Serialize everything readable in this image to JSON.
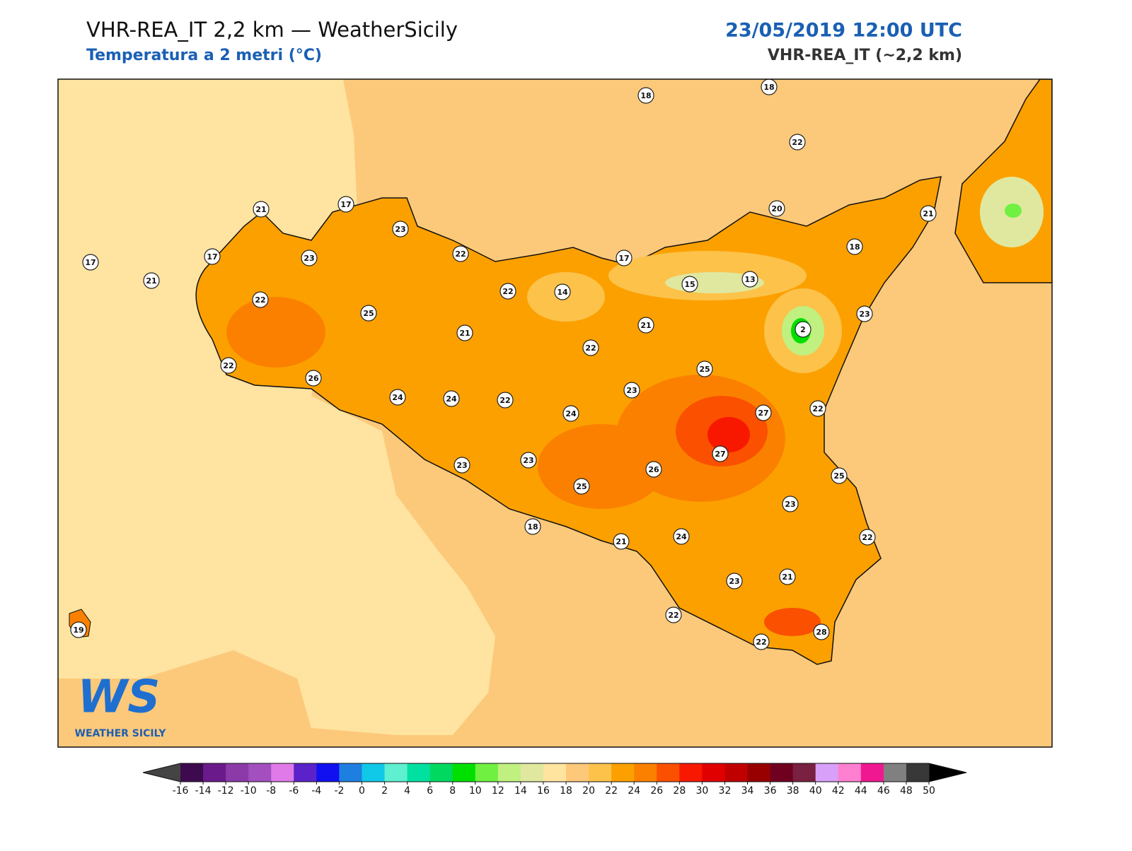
{
  "header": {
    "title": "VHR-REA_IT 2,2 km — WeatherSicily",
    "subtitle": "Temperatura a 2 metri (°C)",
    "date": "23/05/2019 12:00 UTC",
    "model": "VHR-REA_IT (~2,2 km)"
  },
  "map": {
    "stations": [
      18,
      18,
      22,
      21,
      17,
      23,
      20,
      21,
      17,
      17,
      23,
      22,
      17,
      18,
      21,
      15,
      13,
      22,
      25,
      22,
      14,
      23,
      21,
      2,
      21,
      22,
      22,
      25,
      26,
      23,
      24,
      24,
      22,
      24,
      27,
      22,
      27,
      23,
      23,
      26,
      25,
      25,
      23,
      18,
      21,
      24,
      22,
      21,
      23,
      22,
      28,
      22,
      19
    ]
  },
  "colorbar": {
    "ticks": [
      -16,
      -14,
      -12,
      -10,
      -8,
      -6,
      -4,
      -2,
      0,
      2,
      4,
      6,
      8,
      10,
      12,
      14,
      16,
      18,
      20,
      22,
      24,
      26,
      28,
      30,
      32,
      34,
      36,
      38,
      40,
      42,
      44,
      46,
      48,
      50
    ],
    "colors": [
      "#3d0a4e",
      "#6a1a8a",
      "#8b3aa8",
      "#a34fbf",
      "#e07ae8",
      "#5a22c8",
      "#1010f0",
      "#1f7fe0",
      "#10c8e8",
      "#5ef0d0",
      "#00e0a0",
      "#00d860",
      "#00e000",
      "#70f040",
      "#c0f080",
      "#e0e8a0",
      "#ffe4a0",
      "#fdc87a",
      "#fcc24a",
      "#fca000",
      "#fb8000",
      "#fa5000",
      "#f81800",
      "#e00000",
      "#c00000",
      "#980000",
      "#700020",
      "#7a2040",
      "#d8a0f8",
      "#ff80d0",
      "#f01890",
      "#808080",
      "#383838"
    ],
    "under": "#444444",
    "over": "#000000"
  },
  "logo": {
    "mark": "WS",
    "name": "WEATHER SICILY"
  }
}
